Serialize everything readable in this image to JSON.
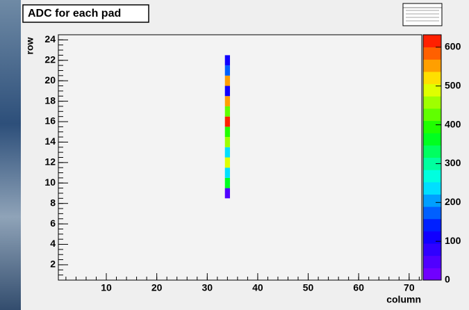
{
  "chart_data": {
    "type": "heatmap",
    "title": "ADC for each pad",
    "xlabel": "column",
    "ylabel": "row",
    "x": [
      34,
      34,
      34,
      34,
      34,
      34,
      34,
      34,
      34,
      34,
      34,
      34,
      34,
      34
    ],
    "y": [
      9,
      10,
      11,
      12,
      13,
      14,
      15,
      16,
      17,
      18,
      19,
      20,
      21,
      22
    ],
    "values": [
      60,
      360,
      240,
      490,
      250,
      450,
      400,
      610,
      440,
      540,
      120,
      540,
      170,
      100
    ],
    "xlim": [
      0.5,
      72.5
    ],
    "xticks": [
      10,
      20,
      30,
      40,
      50,
      60,
      70
    ],
    "ylim": [
      0.5,
      24.5
    ],
    "yticks": [
      2,
      4,
      6,
      8,
      10,
      12,
      14,
      16,
      18,
      20,
      22,
      24
    ],
    "zlim": [
      0,
      632
    ],
    "zticks": [
      0,
      100,
      200,
      300,
      400,
      500,
      600
    ],
    "colorscale": [
      "#8000ff",
      "#0000ff",
      "#00ffff",
      "#00ff00",
      "#ffff00",
      "#ff0000"
    ]
  }
}
